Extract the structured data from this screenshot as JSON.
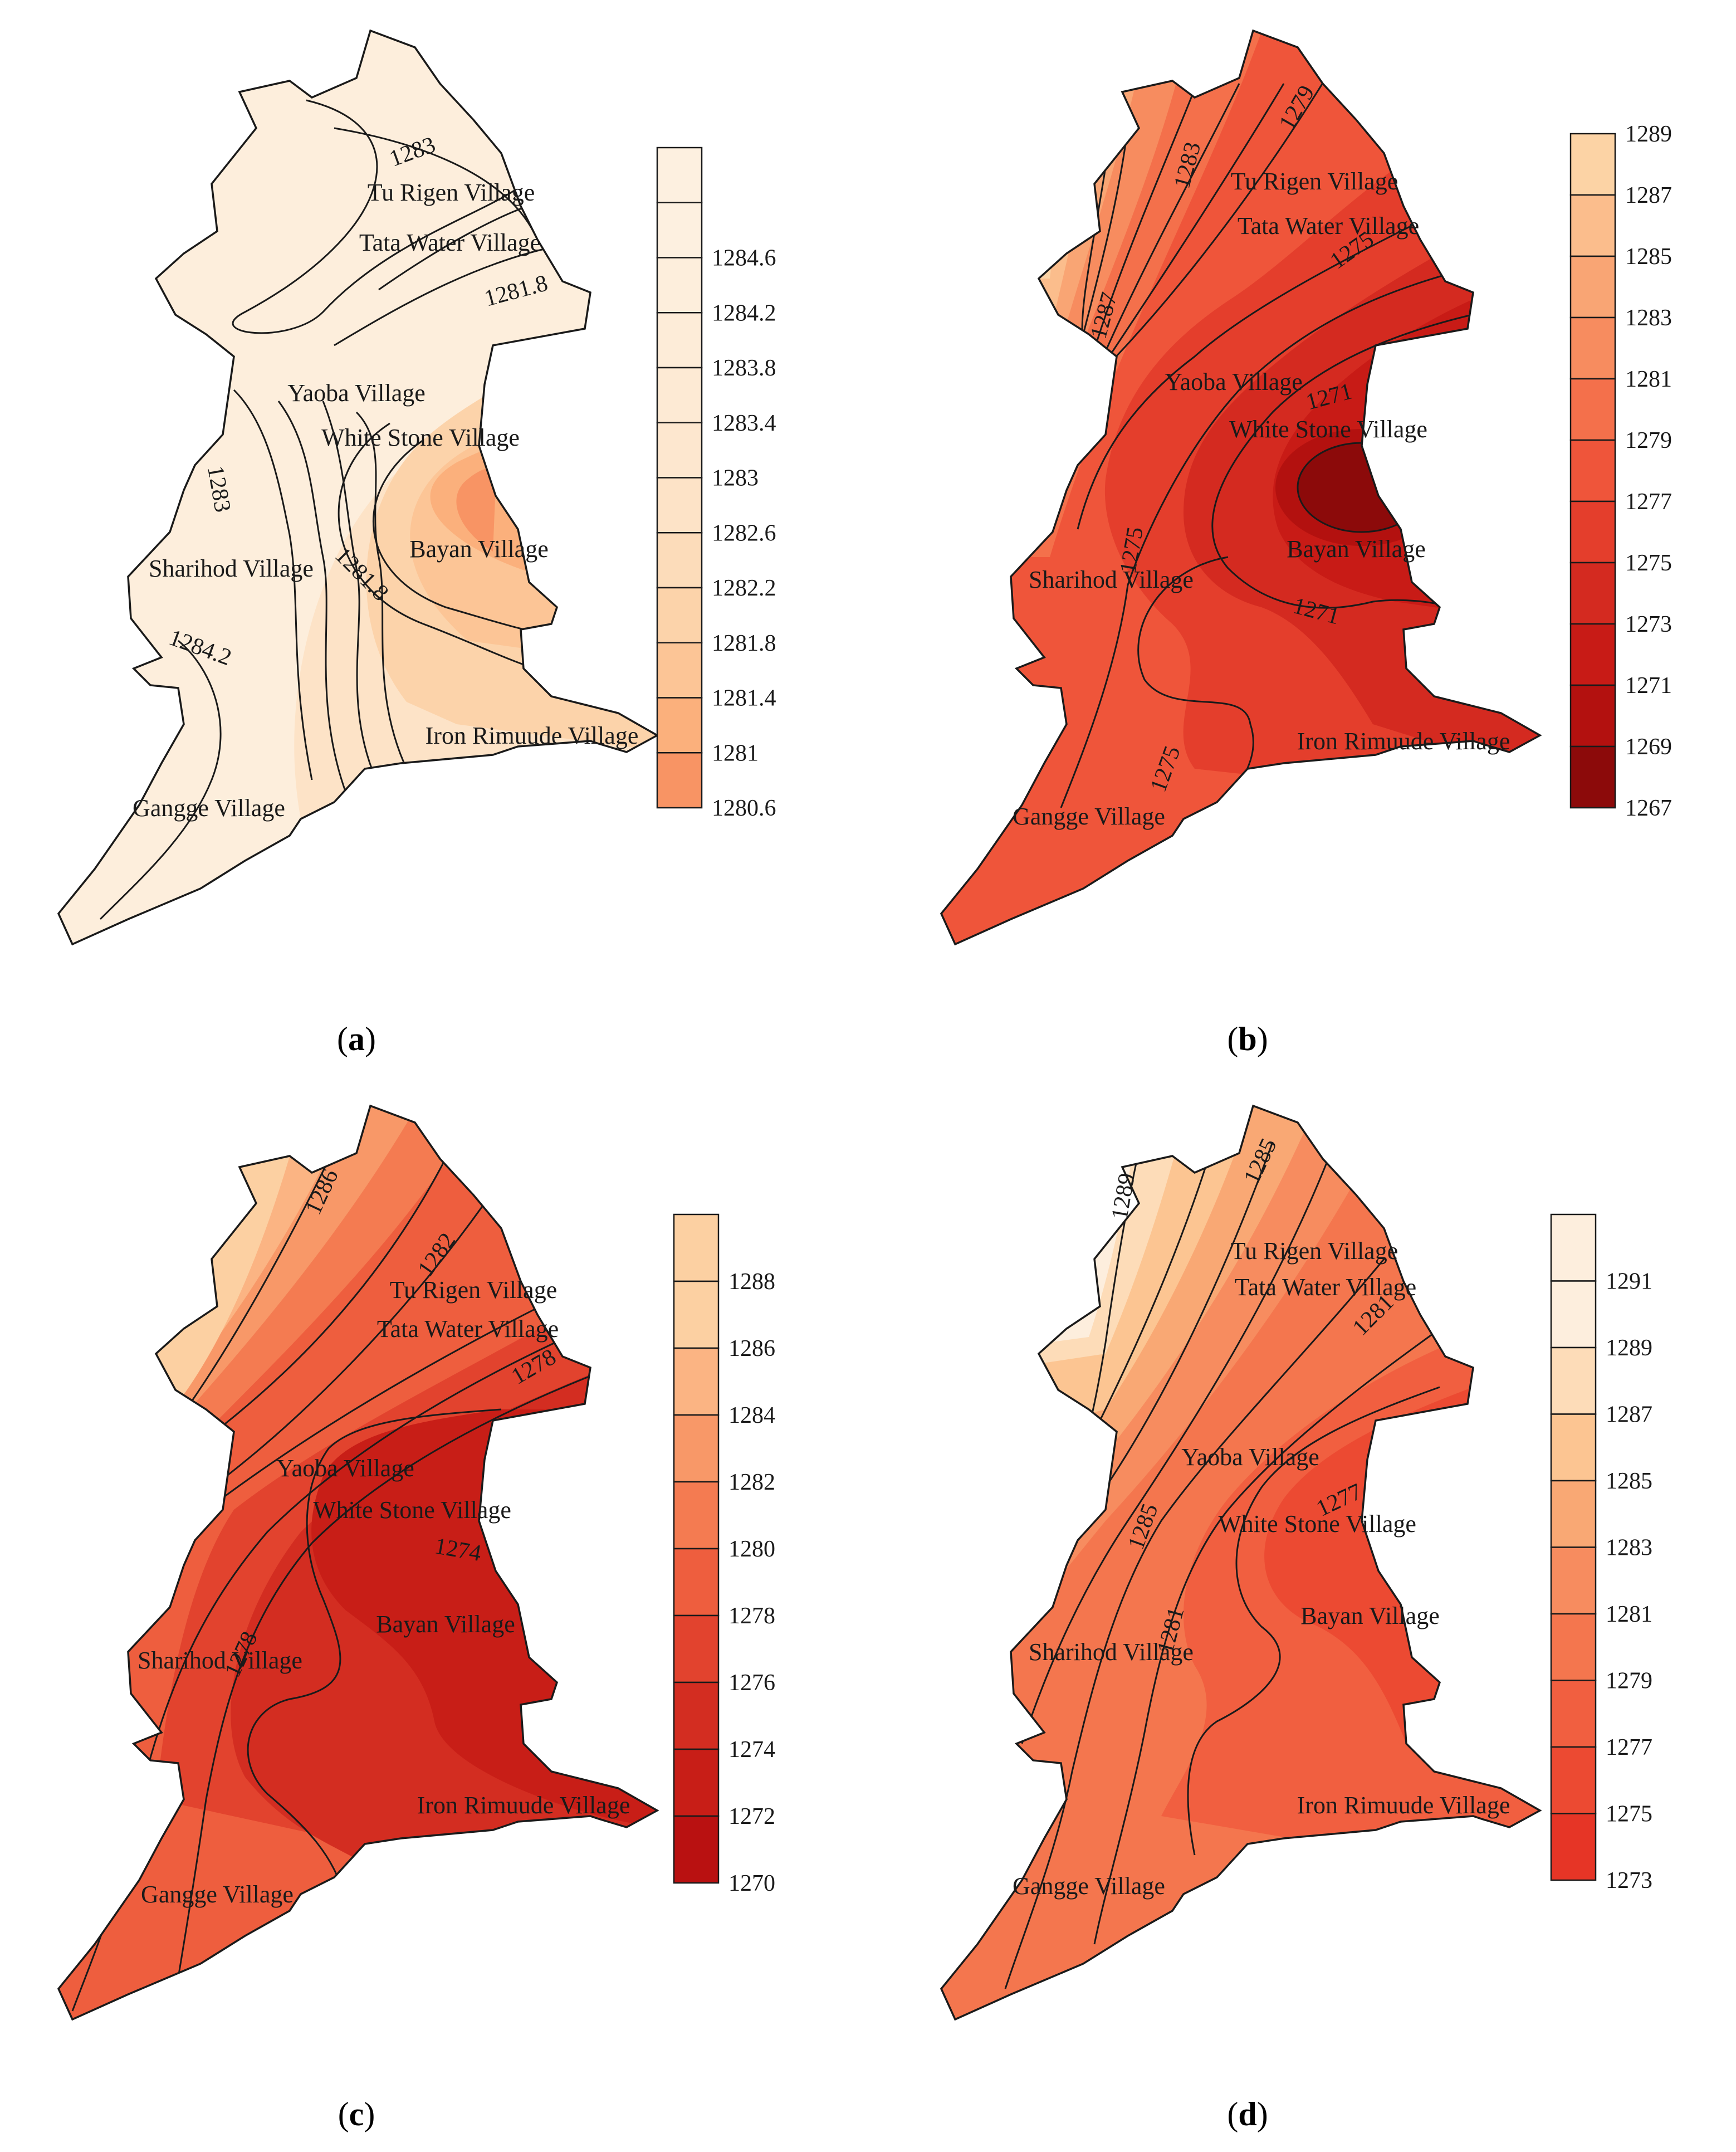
{
  "panels": [
    {
      "id": "a",
      "caption": "a",
      "colorbar_ticks": [
        "1284.6",
        "1284.2",
        "1283.8",
        "1283.4",
        "1283",
        "1282.6",
        "1282.2",
        "1281.8",
        "1281.4",
        "1281",
        "1280.6"
      ],
      "colorbar_colors": [
        "#fdf0e0",
        "#fdeedc",
        "#fdecd8",
        "#fdead4",
        "#fde7cf",
        "#fde3c7",
        "#fcdcba",
        "#fcd3aa",
        "#fcc596",
        "#fbb07c",
        "#f89464"
      ],
      "base_color": "#fdeedc",
      "contour_labels": [
        "1283",
        "1281.8",
        "1283",
        "1281.8",
        "1284.2"
      ],
      "villages": [
        "Tu Rigen Village",
        "Tata Water Village",
        "Yaoba Village",
        "White Stone Village",
        "Bayan Village",
        "Sharihod Village",
        "Iron Rimuude Village",
        "Gangge Village"
      ]
    },
    {
      "id": "b",
      "caption": "b",
      "colorbar_ticks": [
        "1289",
        "1287",
        "1285",
        "1283",
        "1281",
        "1279",
        "1277",
        "1275",
        "1273",
        "1271",
        "1269",
        "1267"
      ],
      "colorbar_colors": [
        "#fcd3a5",
        "#fbbd8c",
        "#f9a574",
        "#f78c5f",
        "#f4704b",
        "#ef553a",
        "#e43e2c",
        "#d42a20",
        "#c81b16",
        "#b3110f",
        "#8c0a0a"
      ],
      "base_color": "#ef553a",
      "contour_labels": [
        "1283",
        "1279",
        "1275",
        "1287",
        "1271",
        "1275",
        "1271",
        "1275"
      ],
      "villages": [
        "Tu Rigen Village",
        "Tata Water Village",
        "Yaoba Village",
        "White Stone Village",
        "Bayan Village",
        "Sharihod Village",
        "Iron Rimuude Village",
        "Gangge Village"
      ]
    },
    {
      "id": "c",
      "caption": "c",
      "colorbar_ticks": [
        "1288",
        "1286",
        "1284",
        "1282",
        "1280",
        "1278",
        "1276",
        "1274",
        "1272",
        "1270"
      ],
      "colorbar_colors": [
        "#fcd0a2",
        "#fbb483",
        "#f89868",
        "#f47b51",
        "#ee5e3e",
        "#e2432e",
        "#d32d21",
        "#c81e17",
        "#b91111"
      ],
      "base_color": "#ee5e3e",
      "contour_labels": [
        "1286",
        "1282",
        "1278",
        "1274",
        "1278"
      ],
      "villages": [
        "Tu Rigen Village",
        "Tata Water Village",
        "Yaoba Village",
        "White Stone Village",
        "Bayan Village",
        "Sharihod Village",
        "Iron Rimuude Village",
        "Gangge Village"
      ]
    },
    {
      "id": "d",
      "caption": "d",
      "colorbar_ticks": [
        "1291",
        "1289",
        "1287",
        "1285",
        "1283",
        "1281",
        "1279",
        "1277",
        "1275",
        "1273"
      ],
      "colorbar_colors": [
        "#fdeedd",
        "#fddcb8",
        "#fcc592",
        "#f9a874",
        "#f78c5f",
        "#f4764e",
        "#f15f40",
        "#ec4a32",
        "#e63526"
      ],
      "base_color": "#f4764e",
      "contour_labels": [
        "1289",
        "1285",
        "1281",
        "1285",
        "1281",
        "1277"
      ],
      "villages": [
        "Tu Rigen Village",
        "Tata Water Village",
        "Yaoba Village",
        "White Stone Village",
        "Bayan Village",
        "Sharihod Village",
        "Iron Rimuude Village",
        "Gangge Village"
      ]
    }
  ]
}
